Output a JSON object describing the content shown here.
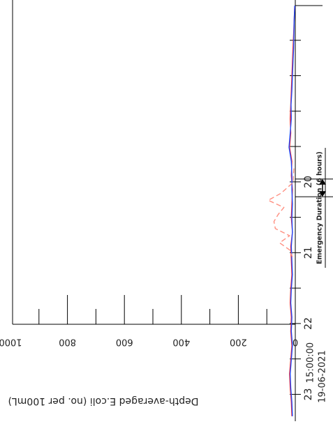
{
  "chart_data": {
    "type": "line",
    "title": "",
    "xlabel": "",
    "ylabel": "Depth-averaged E.coli (no. per 100mL)",
    "x_start_time": "15:00:00",
    "x_start_date": "19-06-2021",
    "x_tick_labels": [
      {
        "t": 4.98,
        "label": "20"
      },
      {
        "t": 6.98,
        "label": "21"
      },
      {
        "t": 8.98,
        "label": "22"
      },
      {
        "t": 10.98,
        "label": "23"
      }
    ],
    "xlim": [
      0,
      11.7
    ],
    "ylim": [
      0,
      1000
    ],
    "y_ticks": [
      0,
      200,
      400,
      600,
      800,
      1000
    ],
    "y_tick_labels": [
      "0",
      "200",
      "400",
      "600",
      "800",
      "1000"
    ],
    "annotation": {
      "text": "Emergency Duration (6 hours)",
      "t_start": 4.9,
      "t_end": 5.4
    },
    "series": [
      {
        "name": "",
        "color": "#ff2a2a",
        "dash": "solid",
        "x": [
          0,
          0.4,
          0.8,
          1.2,
          1.6,
          2.0,
          2.4,
          2.8,
          3.2,
          3.6,
          4.0,
          4.4,
          4.8,
          5.2,
          5.6,
          6.0,
          6.4,
          6.8,
          7.2,
          7.6,
          8.0,
          8.4,
          8.8,
          9.2,
          9.6,
          10.0,
          10.4,
          10.8,
          11.2,
          11.6
        ],
        "y": [
          2,
          4,
          6,
          8,
          10,
          12,
          14,
          16,
          18,
          16,
          20,
          12,
          14,
          10,
          12,
          14,
          10,
          16,
          14,
          12,
          16,
          18,
          14,
          16,
          12,
          16,
          20,
          18,
          14,
          12
        ]
      },
      {
        "name": "",
        "color": "#1f4cff",
        "dash": "solid",
        "x": [
          0,
          0.4,
          0.8,
          1.2,
          1.6,
          2.0,
          2.4,
          2.8,
          3.2,
          3.6,
          4.0,
          4.4,
          4.8,
          5.2,
          5.6,
          6.0,
          6.4,
          6.8,
          7.2,
          7.6,
          8.0,
          8.4,
          8.8,
          9.2,
          9.6,
          10.0,
          10.4,
          10.8,
          11.2,
          11.6
        ],
        "y": [
          2,
          4,
          5,
          6,
          8,
          10,
          12,
          15,
          14,
          18,
          22,
          14,
          12,
          12,
          10,
          12,
          10,
          14,
          12,
          10,
          14,
          16,
          12,
          14,
          10,
          14,
          18,
          16,
          12,
          10
        ]
      },
      {
        "name": "",
        "color": "#ff8f80",
        "dash": "dashed",
        "x": [
          4.6,
          5.0,
          5.3,
          5.5,
          5.7,
          5.9,
          6.1,
          6.3,
          6.5,
          6.7,
          6.9,
          7.1
        ],
        "y": [
          5,
          8,
          50,
          95,
          40,
          60,
          75,
          70,
          20,
          55,
          20,
          10
        ]
      }
    ]
  }
}
